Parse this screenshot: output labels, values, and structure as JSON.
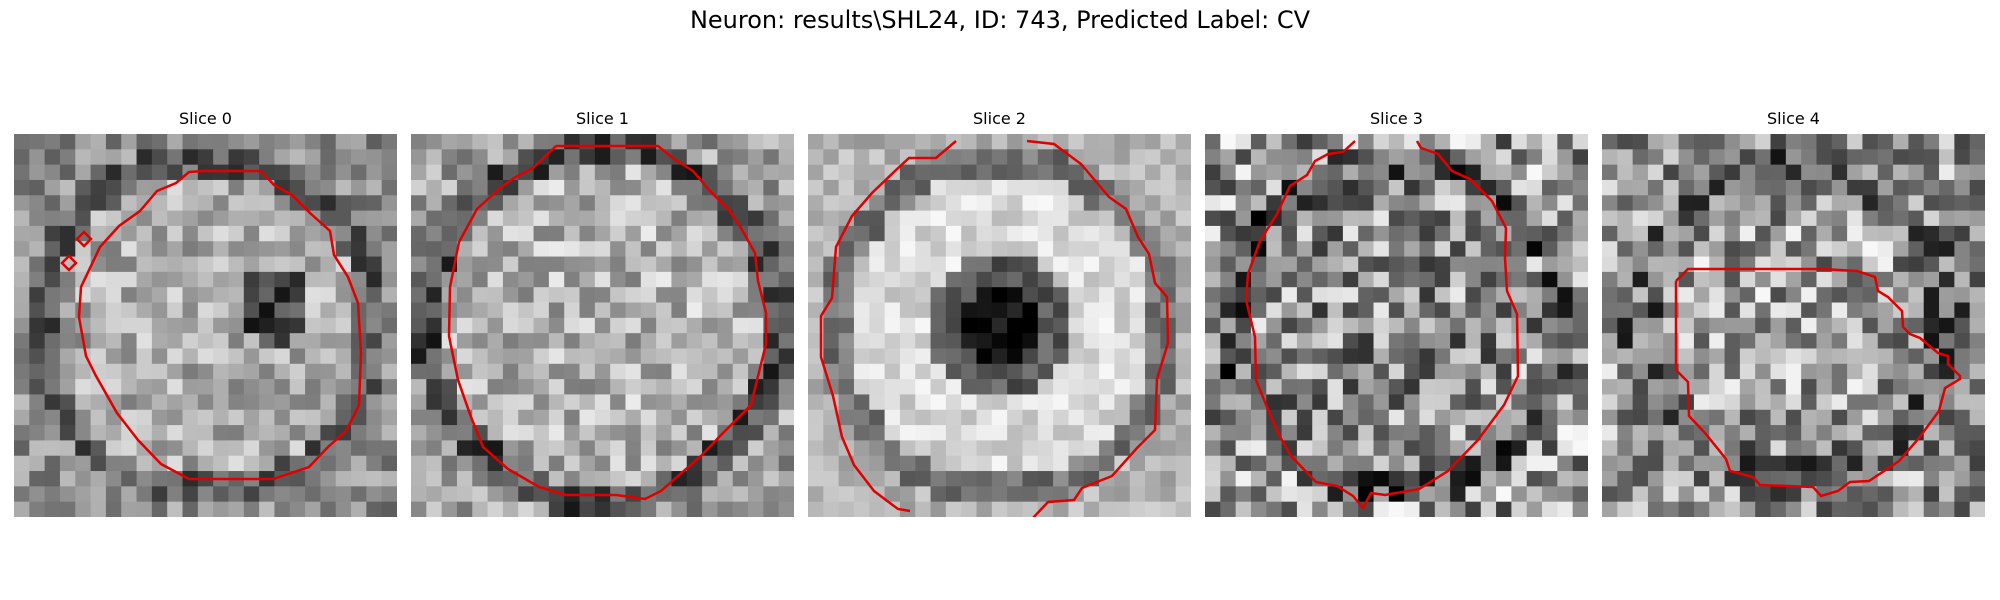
{
  "figure": {
    "title": "Neuron: results\\SHL24, ID: 743, Predicted Label: CV",
    "contour_color": "#e00000",
    "image_colormap": "gray"
  },
  "panels": [
    {
      "title": "Slice 0",
      "pattern": "ring-dark-right",
      "seed": 11
    },
    {
      "title": "Slice 1",
      "pattern": "ring-light",
      "seed": 23
    },
    {
      "title": "Slice 2",
      "pattern": "donut-bright",
      "seed": 37
    },
    {
      "title": "Slice 3",
      "pattern": "ring-speckled",
      "seed": 41
    },
    {
      "title": "Slice 4",
      "pattern": "speckled",
      "seed": 53
    }
  ]
}
